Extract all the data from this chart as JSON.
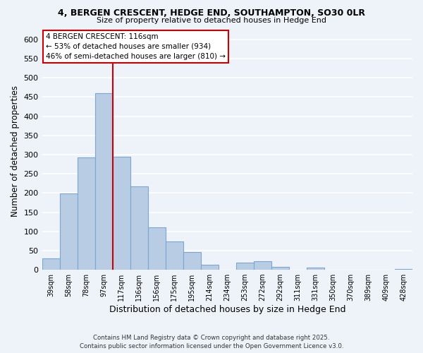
{
  "title1": "4, BERGEN CRESCENT, HEDGE END, SOUTHAMPTON, SO30 0LR",
  "title2": "Size of property relative to detached houses in Hedge End",
  "xlabel": "Distribution of detached houses by size in Hedge End",
  "ylabel": "Number of detached properties",
  "bin_labels": [
    "39sqm",
    "58sqm",
    "78sqm",
    "97sqm",
    "117sqm",
    "136sqm",
    "156sqm",
    "175sqm",
    "195sqm",
    "214sqm",
    "234sqm",
    "253sqm",
    "272sqm",
    "292sqm",
    "311sqm",
    "331sqm",
    "350sqm",
    "370sqm",
    "389sqm",
    "409sqm",
    "428sqm"
  ],
  "bar_heights": [
    30,
    198,
    292,
    460,
    295,
    217,
    110,
    73,
    46,
    13,
    0,
    18,
    22,
    8,
    0,
    5,
    0,
    0,
    0,
    0,
    2
  ],
  "bar_color": "#b8cce4",
  "bar_edge_color": "#7ba7d0",
  "vline_color": "#cc0000",
  "ylim": [
    0,
    620
  ],
  "yticks": [
    0,
    50,
    100,
    150,
    200,
    250,
    300,
    350,
    400,
    450,
    500,
    550,
    600
  ],
  "annotation_title": "4 BERGEN CRESCENT: 116sqm",
  "annotation_line1": "← 53% of detached houses are smaller (934)",
  "annotation_line2": "46% of semi-detached houses are larger (810) →",
  "footer1": "Contains HM Land Registry data © Crown copyright and database right 2025.",
  "footer2": "Contains public sector information licensed under the Open Government Licence v3.0.",
  "background_color": "#eef2f9"
}
